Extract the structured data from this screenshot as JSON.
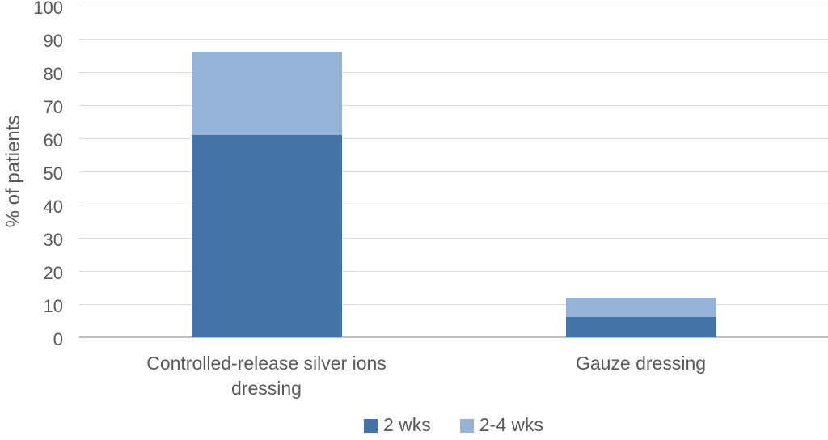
{
  "chart_data": {
    "type": "bar",
    "stacked": true,
    "title": "",
    "categories": [
      "Controlled-release silver ions dressing",
      "Gauze dressing"
    ],
    "series": [
      {
        "name": "2 wks",
        "color": "#4473a8",
        "values": [
          61,
          6
        ]
      },
      {
        "name": "2-4 wks",
        "color": "#95b3d7",
        "values": [
          25,
          6
        ]
      }
    ],
    "stack_totals": [
      86,
      12
    ],
    "xlabel": "",
    "ylabel": "% of patients",
    "ylim": [
      0,
      100
    ],
    "yticks": [
      0,
      10,
      20,
      30,
      40,
      50,
      60,
      70,
      80,
      90,
      100
    ],
    "grid": true,
    "legend_position": "bottom"
  },
  "style": {
    "text_color": "#595959",
    "gridline_color": "#d9d9d9",
    "axis_line_color": "#bfbfbf",
    "background": "#ffffff",
    "series_colors": [
      "#4473a8",
      "#95b3d7"
    ]
  }
}
